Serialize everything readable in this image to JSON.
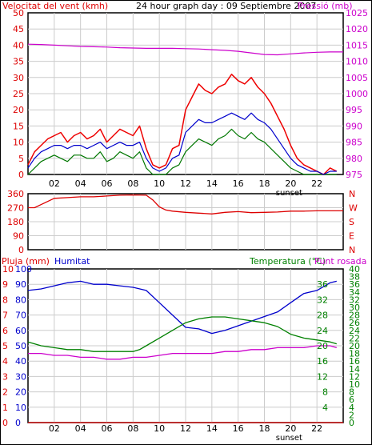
{
  "page_title": "24 hour graph day : 09 Septiembre 2007",
  "colors": {
    "wind": "#ee0000",
    "wind_avg": "#0000cc",
    "wind_gust_alt": "#007700",
    "pressure": "#cc00cc",
    "direction": "#dd0000",
    "rain": "#dd0000",
    "humidity": "#0000cc",
    "temperature": "#008000",
    "dewpoint": "#cc00cc",
    "frame": "#000000",
    "grid": "#cccccc",
    "background": "#ffffff"
  },
  "x_ticks": [
    "02",
    "04",
    "06",
    "08",
    "10",
    "12",
    "14",
    "16",
    "18",
    "20",
    "22"
  ],
  "sunset_label": "sunset",
  "chart_data": [
    {
      "id": "wind",
      "type": "line",
      "title": "24 hour graph day : 09 Septiembre 2007",
      "left_axis_label": "Velocitat del vent (kmh)",
      "right_axis_label": "Pressió (mb)",
      "grid": true,
      "x_range": [
        0,
        24
      ],
      "ylim_left": [
        0,
        50
      ],
      "ylim_right": [
        975,
        1025
      ],
      "yticks_left": [
        "0",
        "5",
        "10",
        "15",
        "20",
        "25",
        "30",
        "35",
        "40",
        "45",
        "50"
      ],
      "yticks_right": [
        "975",
        "980",
        "985",
        "990",
        "995",
        "1000",
        "1005",
        "1010",
        "1015",
        "1020",
        "1025"
      ],
      "series": [
        {
          "key": "gust",
          "axis": "left",
          "x": [
            0,
            0.5,
            1,
            1.5,
            2,
            2.5,
            3,
            3.5,
            4,
            4.5,
            5,
            5.5,
            6,
            6.5,
            7,
            7.5,
            8,
            8.5,
            9,
            9.5,
            10,
            10.5,
            11,
            11.5,
            12,
            12.5,
            13,
            13.5,
            14,
            14.5,
            15,
            15.5,
            16,
            16.5,
            17,
            17.5,
            18,
            18.5,
            19,
            19.5,
            20,
            20.5,
            21,
            21.5,
            22,
            22.5,
            23,
            23.5
          ],
          "y": [
            3,
            7,
            9,
            11,
            12,
            13,
            10,
            12,
            13,
            11,
            12,
            14,
            10,
            12,
            14,
            13,
            12,
            15,
            8,
            3,
            2,
            3,
            8,
            9,
            20,
            24,
            28,
            26,
            25,
            27,
            28,
            31,
            29,
            28,
            30,
            27,
            25,
            22,
            18,
            14,
            9,
            5,
            3,
            2,
            1,
            0,
            2,
            1
          ]
        },
        {
          "key": "average",
          "axis": "left",
          "x": [
            0,
            0.5,
            1,
            1.5,
            2,
            2.5,
            3,
            3.5,
            4,
            4.5,
            5,
            5.5,
            6,
            6.5,
            7,
            7.5,
            8,
            8.5,
            9,
            9.5,
            10,
            10.5,
            11,
            11.5,
            12,
            12.5,
            13,
            13.5,
            14,
            14.5,
            15,
            15.5,
            16,
            16.5,
            17,
            17.5,
            18,
            18.5,
            19,
            19.5,
            20,
            20.5,
            21,
            21.5,
            22,
            22.5,
            23,
            23.5
          ],
          "y": [
            2,
            5,
            7,
            8,
            9,
            9,
            8,
            9,
            9,
            8,
            9,
            10,
            8,
            9,
            10,
            9,
            9,
            10,
            5,
            2,
            1,
            2,
            5,
            6,
            13,
            15,
            17,
            16,
            16,
            17,
            18,
            19,
            18,
            17,
            19,
            17,
            16,
            14,
            11,
            8,
            5,
            3,
            2,
            1,
            1,
            0,
            1,
            1
          ]
        },
        {
          "key": "minimum",
          "axis": "left",
          "x": [
            0,
            0.5,
            1,
            1.5,
            2,
            2.5,
            3,
            3.5,
            4,
            4.5,
            5,
            5.5,
            6,
            6.5,
            7,
            7.5,
            8,
            8.5,
            9,
            9.5,
            10,
            10.5,
            11,
            11.5,
            12,
            12.5,
            13,
            13.5,
            14,
            14.5,
            15,
            15.5,
            16,
            16.5,
            17,
            17.5,
            18,
            18.5,
            19,
            19.5,
            20,
            20.5,
            21,
            21.5,
            22,
            22.5,
            23,
            23.5
          ],
          "y": [
            0,
            2,
            4,
            5,
            6,
            5,
            4,
            6,
            6,
            5,
            5,
            7,
            4,
            5,
            7,
            6,
            5,
            7,
            2,
            0,
            0,
            0,
            2,
            3,
            7,
            9,
            11,
            10,
            9,
            11,
            12,
            14,
            12,
            11,
            13,
            11,
            10,
            8,
            6,
            4,
            2,
            1,
            0,
            0,
            0,
            0,
            0,
            0
          ]
        },
        {
          "key": "pressure",
          "axis": "right",
          "x": [
            0,
            1,
            2,
            3,
            4,
            5,
            6,
            7,
            8,
            9,
            10,
            11,
            12,
            13,
            14,
            15,
            16,
            17,
            18,
            19,
            20,
            21,
            22,
            23,
            24
          ],
          "y": [
            1015.3,
            1015.2,
            1015,
            1014.8,
            1014.6,
            1014.5,
            1014.4,
            1014.2,
            1014.1,
            1014,
            1014,
            1014,
            1013.9,
            1013.8,
            1013.6,
            1013.4,
            1013.1,
            1012.6,
            1012.1,
            1012,
            1012.3,
            1012.6,
            1012.8,
            1012.9,
            1012.9
          ]
        }
      ]
    },
    {
      "id": "direction",
      "type": "line",
      "grid": true,
      "x_range": [
        0,
        24
      ],
      "ylim": [
        0,
        360
      ],
      "yticks_left": [
        "0",
        "90",
        "180",
        "270",
        "360"
      ],
      "yticks_right": [
        "N",
        "W",
        "S",
        "E",
        "N"
      ],
      "series": [
        {
          "key": "direction",
          "x": [
            0,
            0.5,
            1,
            1.5,
            2,
            3,
            4,
            5,
            6,
            7,
            8,
            9,
            9.5,
            10,
            10.5,
            11,
            12,
            13,
            14,
            15,
            16,
            17,
            18,
            19,
            20,
            21,
            22,
            23,
            24
          ],
          "y": [
            270,
            270,
            290,
            310,
            330,
            335,
            340,
            340,
            345,
            350,
            352,
            350,
            320,
            275,
            255,
            248,
            240,
            235,
            230,
            240,
            245,
            238,
            240,
            242,
            248,
            248,
            250,
            250,
            250
          ]
        }
      ]
    },
    {
      "id": "temp",
      "type": "line",
      "grid": true,
      "x_range": [
        0,
        24
      ],
      "label_rain": "Pluja (mm)",
      "label_humidity": "Humitat",
      "label_temperature": "Temperatura (°C)",
      "label_dewpoint": "Punt rosada",
      "ylim_rain": [
        0,
        10
      ],
      "ylim_humidity": [
        0,
        100
      ],
      "ylim_temp": [
        0,
        40
      ],
      "yticks_rain": [
        "0",
        "1",
        "2",
        "3",
        "4",
        "5",
        "6",
        "7",
        "8",
        "9",
        "10"
      ],
      "yticks_humidity": [
        "0",
        "10",
        "20",
        "30",
        "40",
        "50",
        "60",
        "70",
        "80",
        "90",
        "100"
      ],
      "yticks_temp_left": [
        "0",
        "4",
        "8",
        "12",
        "16",
        "20",
        "24",
        "28",
        "32",
        "36",
        "40"
      ],
      "yticks_temp_right": [
        "0",
        "2",
        "4",
        "6",
        "8",
        "10",
        "12",
        "14",
        "16",
        "18",
        "20",
        "22",
        "24",
        "26",
        "28",
        "30",
        "32",
        "34",
        "36",
        "38",
        "40"
      ],
      "series": [
        {
          "key": "humidity",
          "x": [
            0,
            1,
            2,
            3,
            4,
            5,
            6,
            7,
            8,
            9,
            10,
            11,
            12,
            13,
            14,
            15,
            16,
            17,
            18,
            19,
            20,
            21,
            22,
            23,
            23.5
          ],
          "y": [
            86,
            87,
            89,
            91,
            92,
            90,
            90,
            89,
            88,
            86,
            78,
            70,
            62,
            61,
            58,
            60,
            63,
            66,
            69,
            72,
            78,
            84,
            86,
            91,
            92
          ]
        },
        {
          "key": "temperature",
          "x": [
            0,
            1,
            2,
            3,
            4,
            5,
            6,
            7,
            8,
            8.5,
            9,
            10,
            11,
            12,
            13,
            14,
            15,
            16,
            17,
            18,
            19,
            20,
            21,
            22,
            23,
            23.5
          ],
          "y": [
            21,
            20,
            19.5,
            19,
            19,
            18.5,
            18.5,
            18.5,
            18.5,
            19,
            20,
            22,
            24,
            26,
            27,
            27.5,
            27.5,
            27,
            26.5,
            26,
            25,
            23,
            22,
            21.5,
            21,
            20.5
          ]
        },
        {
          "key": "dewpoint",
          "x": [
            0,
            1,
            2,
            3,
            4,
            5,
            6,
            7,
            8,
            9,
            10,
            11,
            12,
            13,
            14,
            15,
            16,
            17,
            18,
            19,
            20,
            21,
            22,
            23,
            23.5
          ],
          "y": [
            18,
            18,
            17.5,
            17.5,
            17,
            17,
            16.5,
            16.5,
            17,
            17,
            17.5,
            18,
            18,
            18,
            18,
            18.5,
            18.5,
            19,
            19,
            19.5,
            19.5,
            19.5,
            20,
            20,
            19.5
          ]
        },
        {
          "key": "rain",
          "x": [
            0,
            24
          ],
          "y": [
            0,
            0
          ]
        }
      ]
    }
  ]
}
